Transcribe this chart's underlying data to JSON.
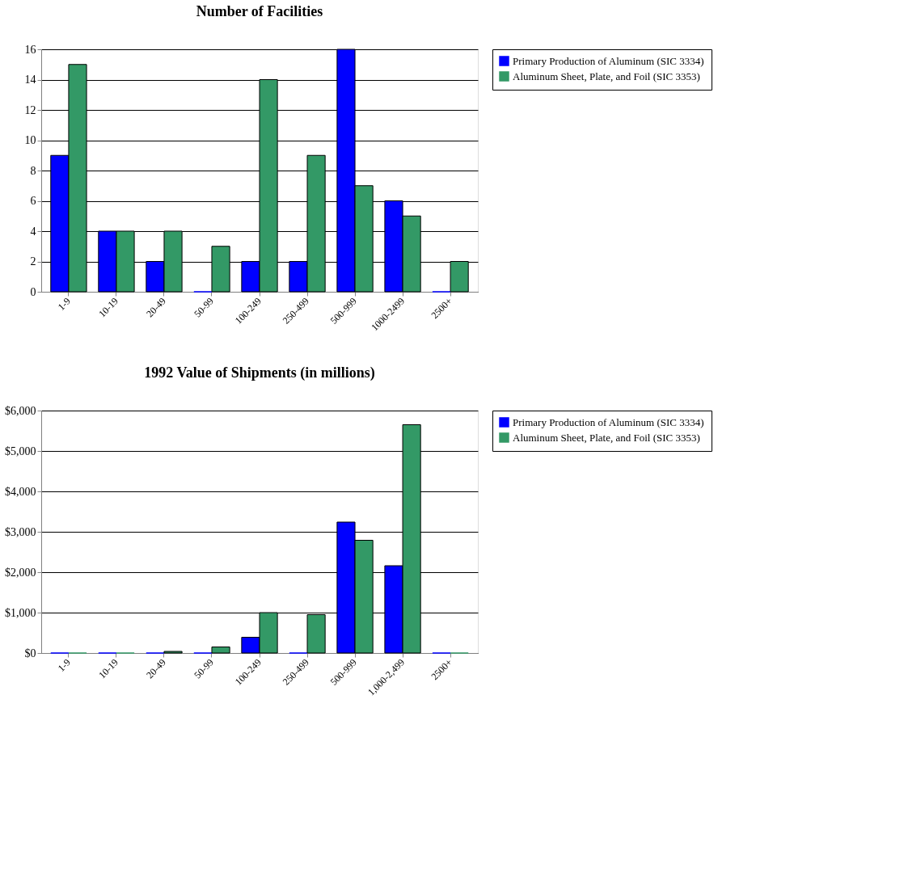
{
  "chart_data": [
    {
      "type": "bar",
      "title": "Number of Facilities",
      "categories": [
        "1-9",
        "10-19",
        "20-49",
        "50-99",
        "100-249",
        "250-499",
        "500-999",
        "1000-2499",
        "2500+"
      ],
      "series": [
        {
          "name": "Primary Production of Aluminum (SIC 3334)",
          "color": "#0000ff",
          "values": [
            9,
            4,
            2,
            0,
            2,
            2,
            16,
            6,
            0
          ]
        },
        {
          "name": "Aluminum Sheet, Plate, and Foil (SIC 3353)",
          "color": "#339966",
          "values": [
            15,
            4,
            4,
            3,
            14,
            9,
            7,
            5,
            2
          ]
        }
      ],
      "ylim": [
        0,
        16
      ],
      "yticks": [
        0,
        2,
        4,
        6,
        8,
        10,
        12,
        14,
        16
      ],
      "grid": "y",
      "legend": "right"
    },
    {
      "type": "bar",
      "title": "1992 Value of Shipments (in millions)",
      "categories": [
        "1-9",
        "10-19",
        "20-49",
        "50-99",
        "100-249",
        "250-499",
        "500-999",
        "1,000-2,499",
        "2500+"
      ],
      "series": [
        {
          "name": "Primary Production of Aluminum (SIC 3334)",
          "color": "#0000ff",
          "values": [
            0,
            0,
            0,
            0,
            390,
            0,
            3240,
            2160,
            0
          ]
        },
        {
          "name": "Aluminum Sheet, Plate, and Foil (SIC 3353)",
          "color": "#339966",
          "values": [
            0,
            0,
            40,
            150,
            1000,
            950,
            2790,
            5650,
            0
          ]
        }
      ],
      "ylim": [
        0,
        6000
      ],
      "yticks": [
        {
          "value": 0,
          "label": "$0"
        },
        {
          "value": 1000,
          "label": "$1,000"
        },
        {
          "value": 2000,
          "label": "$2,000"
        },
        {
          "value": 3000,
          "label": "$3,000"
        },
        {
          "value": 4000,
          "label": "$4,000"
        },
        {
          "value": 5000,
          "label": "$5,000"
        },
        {
          "value": 6000,
          "label": "$6,000"
        }
      ],
      "grid": "y",
      "legend": "right"
    }
  ]
}
